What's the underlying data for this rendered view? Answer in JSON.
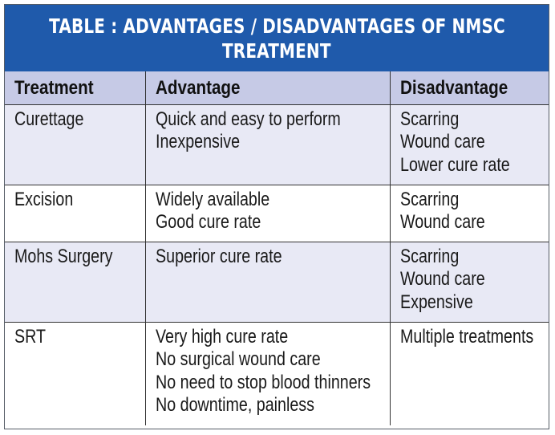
{
  "title": {
    "line1": "TABLE : ADVANTAGES / DISADVANTAGES OF NMSC",
    "line2": "TREATMENT"
  },
  "headers": {
    "treatment": "Treatment",
    "advantage": "Advantage",
    "disadvantage": "Disadvantage"
  },
  "rows": [
    {
      "treatment": "Curettage",
      "advantages": [
        "Quick and easy to perform",
        "Inexpensive"
      ],
      "disadvantages": [
        "Scarring",
        "Wound care",
        "Lower cure rate"
      ]
    },
    {
      "treatment": "Excision",
      "advantages": [
        "Widely available",
        "Good cure rate"
      ],
      "disadvantages": [
        "Scarring",
        "Wound care"
      ]
    },
    {
      "treatment": "Mohs Surgery",
      "advantages": [
        "Superior cure rate"
      ],
      "disadvantages": [
        "Scarring",
        "Wound care",
        "Expensive"
      ]
    },
    {
      "treatment": "SRT",
      "advantages": [
        "Very high cure rate",
        "No surgical wound care",
        "No need to stop blood thinners",
        "No downtime, painless"
      ],
      "disadvantages": [
        "Multiple treatments"
      ]
    }
  ],
  "colors": {
    "title_bg": "#1f5aab",
    "header_bg": "#c6cae6",
    "shaded_row_bg": "#e8e9f5",
    "plain_row_bg": "#ffffff"
  }
}
